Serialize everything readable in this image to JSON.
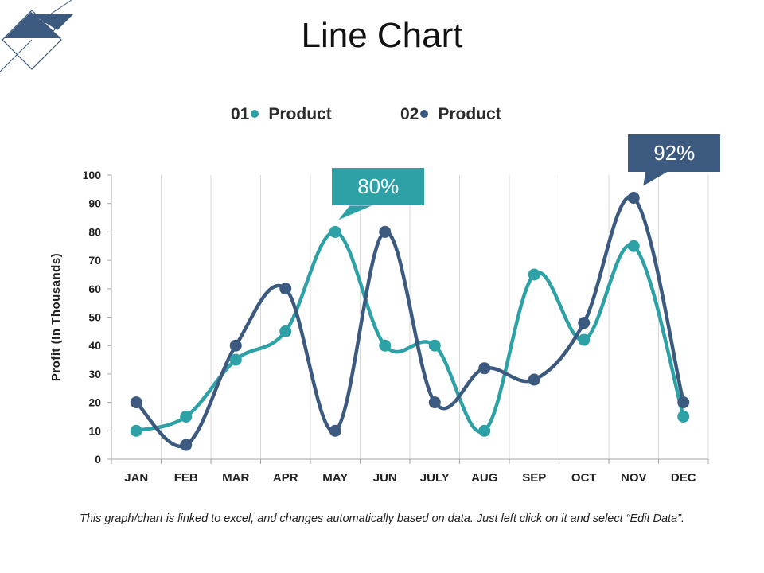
{
  "title": "Line Chart",
  "legend": [
    {
      "num": "01",
      "label": "Product",
      "color": "#2ea1a6"
    },
    {
      "num": "02",
      "label": "Product",
      "color": "#3c5a80"
    }
  ],
  "footer": "This graph/chart is linked to excel, and changes automatically based on data. Just left click on it and select “Edit Data”.",
  "callouts": [
    {
      "text": "80%",
      "color": "#2ea1a6",
      "series": 0,
      "index": 4
    },
    {
      "text": "92%",
      "color": "#3c5a80",
      "series": 1,
      "index": 10
    }
  ],
  "chart_data": {
    "type": "line",
    "title": "Line Chart",
    "xlabel": "",
    "ylabel": "Profit (In Thousands)",
    "ylim": [
      0,
      100
    ],
    "ytick_step": 10,
    "grid": "vertical",
    "categories": [
      "JAN",
      "FEB",
      "MAR",
      "APR",
      "MAY",
      "JUN",
      "JULY",
      "AUG",
      "SEP",
      "OCT",
      "NOV",
      "DEC"
    ],
    "series": [
      {
        "name": "01 Product",
        "color": "#2ea1a6",
        "values": [
          10,
          15,
          35,
          45,
          80,
          40,
          40,
          10,
          65,
          42,
          75,
          15
        ]
      },
      {
        "name": "02 Product",
        "color": "#3c5a80",
        "values": [
          20,
          5,
          40,
          60,
          10,
          80,
          20,
          32,
          28,
          48,
          92,
          20
        ]
      }
    ]
  }
}
